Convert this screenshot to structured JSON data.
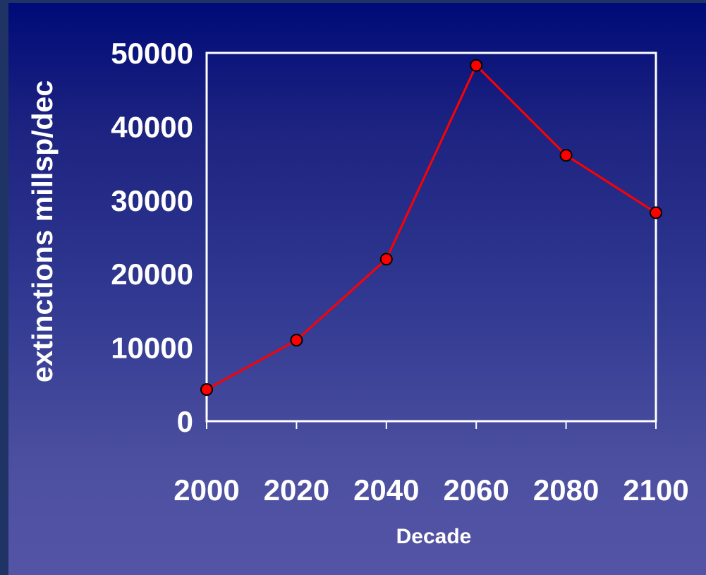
{
  "chart_data": {
    "type": "line",
    "title": "",
    "xlabel": "Decade",
    "ylabel": "extinctions millsp/dec",
    "x": [
      2000,
      2020,
      2040,
      2060,
      2080,
      2100
    ],
    "x_tick_labels": [
      "2000",
      "2020",
      "2040",
      "2060",
      "2080",
      "2100"
    ],
    "y_tick_labels": [
      "0",
      "10000",
      "20000",
      "30000",
      "40000",
      "50000"
    ],
    "y_ticks": [
      0,
      10000,
      20000,
      30000,
      40000,
      50000
    ],
    "ylim": [
      0,
      50000
    ],
    "xlim": [
      2000,
      2100
    ],
    "series": [
      {
        "values": [
          4300,
          11000,
          22000,
          48300,
          36100,
          28300
        ],
        "line_color": "#ff0000",
        "marker_color": "#ff0000",
        "marker_edge": "#000000"
      }
    ],
    "plot_border_color": "#ffffff",
    "grid": false,
    "legend": "none"
  },
  "colors": {
    "background_top": "#000b78",
    "background_bottom": "#5454a7",
    "text": "#ffffff"
  }
}
